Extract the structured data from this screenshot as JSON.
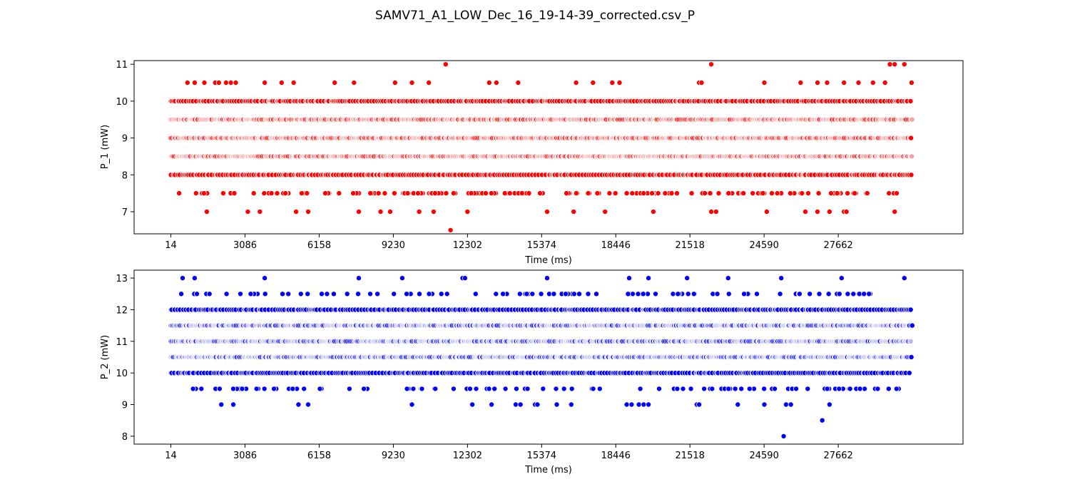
{
  "figure": {
    "title": "SAMV71_A1_LOW_Dec_16_19-14-39_corrected.csv_P"
  },
  "chart_data": [
    {
      "type": "scatter",
      "id": "p1",
      "xlabel": "Time (ms)",
      "ylabel": "P_1 (mW)",
      "xlim": [
        -1510,
        32830
      ],
      "ylim": [
        6.4,
        11.1
      ],
      "xticks": [
        14,
        3086,
        6158,
        9230,
        12302,
        15374,
        18446,
        21518,
        24590,
        27662
      ],
      "yticks": [
        7,
        8,
        9,
        10,
        11
      ],
      "grid": false,
      "legend": "none",
      "colors": {
        "marker": "#ff0000",
        "marker_dense": "#f4a0a0",
        "edge": "#ffffff"
      },
      "x_range": [
        14,
        30730
      ],
      "dense_levels": [
        8.5,
        9.0,
        9.5
      ],
      "band_levels": [
        8.0,
        8.5,
        9.0,
        9.5,
        10.0
      ],
      "outliers": [
        {
          "level": 10.5,
          "x": [
            700,
            1000,
            1400,
            1850,
            2000,
            2300,
            2500,
            2700,
            3900,
            4600,
            5100,
            6800,
            7600,
            9300,
            10000,
            10700,
            13200,
            13500,
            14400,
            16800,
            17500,
            18300,
            18600,
            21900,
            22000,
            24600,
            26100,
            26800,
            27200,
            27900,
            28500,
            29100,
            29600,
            30700
          ]
        },
        {
          "level": 7.5,
          "x": 170,
          "spread": [
            150,
            30600
          ]
        },
        {
          "level": 7.0,
          "x": [
            1500,
            3200,
            3700,
            5200,
            5700,
            7800,
            8700,
            9100,
            10300,
            10900,
            12300,
            15600,
            16700,
            18000,
            20000,
            22400,
            22600,
            24700,
            26300,
            26800,
            27300,
            27900,
            28000,
            30000
          ]
        },
        {
          "level": 11.0,
          "x": [
            11400,
            22400,
            29800,
            30000,
            30400
          ]
        },
        {
          "level": 6.5,
          "x": [
            11600
          ]
        }
      ]
    },
    {
      "type": "scatter",
      "id": "p2",
      "xlabel": "Time (ms)",
      "ylabel": "P_2 (mW)",
      "xlim": [
        -1510,
        32830
      ],
      "ylim": [
        7.75,
        13.25
      ],
      "xticks": [
        14,
        3086,
        6158,
        9230,
        12302,
        15374,
        18446,
        21518,
        24590,
        27662
      ],
      "yticks": [
        8,
        9,
        10,
        11,
        12,
        13
      ],
      "grid": false,
      "legend": "none",
      "colors": {
        "marker": "#0000ff",
        "marker_dense": "#b8b8ee",
        "edge": "#ffffff"
      },
      "x_range": [
        14,
        30730
      ],
      "dense_levels": [
        10.5,
        11.0,
        11.5
      ],
      "band_levels": [
        10.0,
        10.5,
        11.0,
        11.5,
        12.0
      ],
      "outliers": [
        {
          "level": 13.0,
          "x": [
            500,
            1000,
            3900,
            7800,
            9600,
            12100,
            12200,
            15600,
            19000,
            19800,
            21400,
            23100,
            25300,
            27800,
            30400
          ]
        },
        {
          "level": 12.5,
          "x": 100,
          "spread": [
            0,
            30500
          ]
        },
        {
          "level": 9.5,
          "x": 110,
          "spread": [
            400,
            30700
          ]
        },
        {
          "level": 9.0,
          "x": [
            2100,
            2600,
            10000,
            5300,
            5700,
            12500,
            13300,
            14300,
            14500,
            15100,
            15200,
            16000,
            16600,
            18900,
            19100,
            19400,
            19600,
            19800,
            21800,
            21900,
            23500,
            24600,
            25500,
            25700,
            27300
          ]
        },
        {
          "level": 8.5,
          "x": [
            27000
          ]
        },
        {
          "level": 8.0,
          "x": [
            25400
          ]
        }
      ]
    }
  ]
}
